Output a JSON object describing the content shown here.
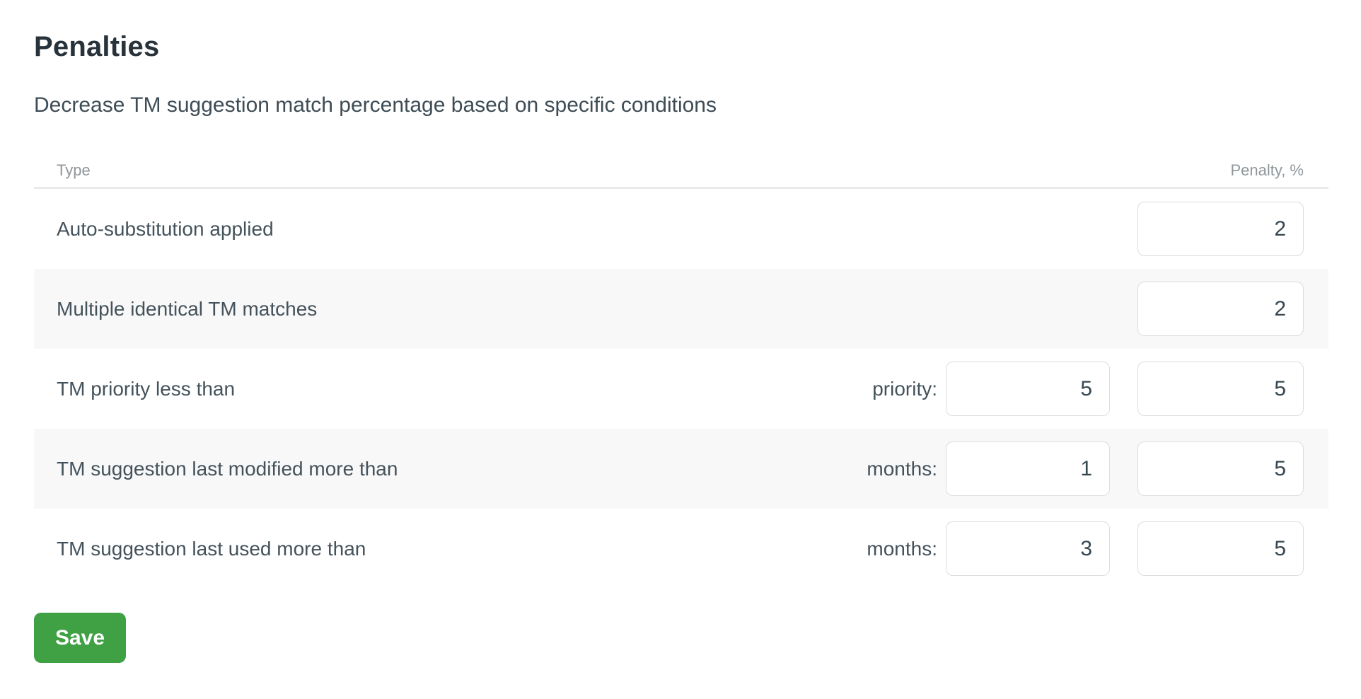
{
  "page": {
    "title": "Penalties",
    "subtitle": "Decrease TM suggestion match percentage based on specific conditions"
  },
  "table": {
    "columns": {
      "type": "Type",
      "penalty": "Penalty, %"
    },
    "rows": [
      {
        "type": "Auto-substitution applied",
        "penalty": "2"
      },
      {
        "type": "Multiple identical TM matches",
        "penalty": "2"
      },
      {
        "type": "TM priority less than",
        "param_label": "priority:",
        "param_value": "5",
        "penalty": "5"
      },
      {
        "type": "TM suggestion last modified more than",
        "param_label": "months:",
        "param_value": "1",
        "penalty": "5"
      },
      {
        "type": "TM suggestion last used more than",
        "param_label": "months:",
        "param_value": "3",
        "penalty": "5"
      }
    ]
  },
  "actions": {
    "save_label": "Save"
  },
  "colors": {
    "accent_green": "#3FA144",
    "row_stripe": "#F8F8F8",
    "input_border": "#DADEDF",
    "divider": "#EAEAEA",
    "heading_text": "#27323A",
    "body_text": "#44525B",
    "muted_text": "#8F969A"
  }
}
